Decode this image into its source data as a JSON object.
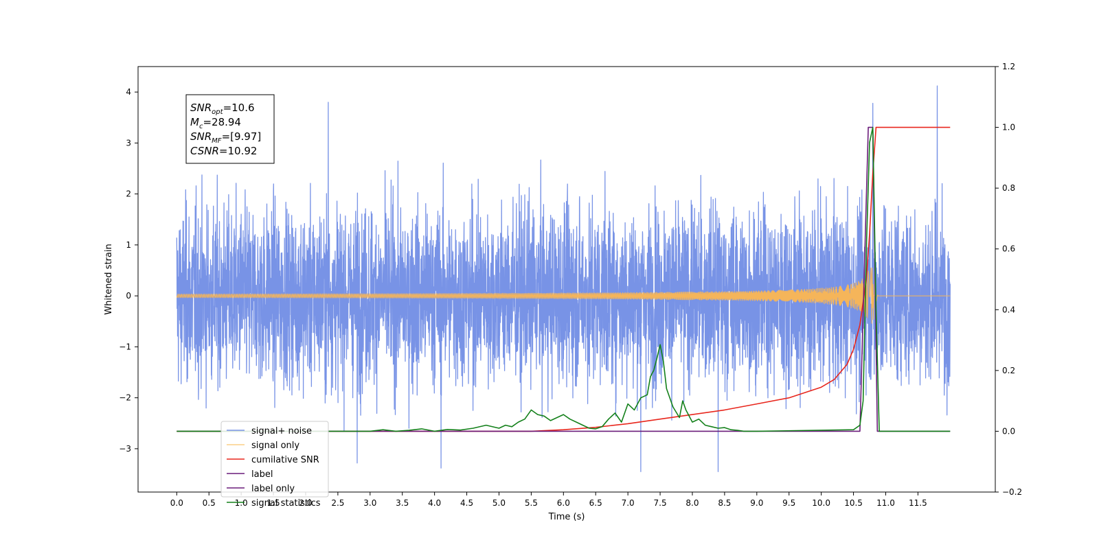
{
  "chart_data": {
    "type": "line",
    "xlabel": "Time (s)",
    "ylabel": "Whitened strain",
    "xlim": [
      -0.6,
      12.7
    ],
    "ylim": [
      -3.85,
      4.5
    ],
    "y2lim": [
      -0.2,
      1.2
    ],
    "grid": false,
    "legend_position": "lower-left",
    "xticks": [
      "0.0",
      "0.5",
      "1.0",
      "1.5",
      "2.0",
      "2.5",
      "3.0",
      "3.5",
      "4.0",
      "4.5",
      "5.0",
      "5.5",
      "6.0",
      "6.5",
      "7.0",
      "7.5",
      "8.0",
      "8.5",
      "9.0",
      "9.5",
      "10.0",
      "10.5",
      "11.0",
      "11.5"
    ],
    "yticks": [
      "4",
      "3",
      "2",
      "1",
      "0",
      "−1",
      "−2",
      "−3"
    ],
    "yticks_values": [
      4,
      3,
      2,
      1,
      0,
      -1,
      -2,
      -3
    ],
    "y2ticks": [
      "1.2",
      "1.0",
      "0.8",
      "0.6",
      "0.4",
      "0.2",
      "0.0",
      "−0.2"
    ],
    "y2ticks_values": [
      1.2,
      1.0,
      0.8,
      0.6,
      0.4,
      0.2,
      0.0,
      -0.2
    ],
    "annotation": {
      "lines": [
        {
          "base": "SNR",
          "sub": "opt",
          "value": "=10.6"
        },
        {
          "base": "M",
          "sub": "c",
          "value": "=28.94"
        },
        {
          "base": "SNR",
          "sub": "MF",
          "value": "=[9.97]"
        },
        {
          "base": "CSNR",
          "sub": "",
          "value": "=10.92"
        }
      ]
    },
    "series": [
      {
        "name": "signal+ noise",
        "color": "#7893e6",
        "axis": "left",
        "style": "noise",
        "x_range": [
          0.0,
          12.0
        ],
        "amplitude_sigma": 0.9,
        "peaks": [
          [
            2.35,
            3.8
          ],
          [
            10.8,
            3.78
          ],
          [
            11.8,
            4.12
          ],
          [
            4.1,
            -3.38
          ],
          [
            7.2,
            -3.45
          ],
          [
            8.4,
            -3.45
          ],
          [
            2.8,
            -3.28
          ]
        ]
      },
      {
        "name": "signal only",
        "color": "#f5b55a",
        "axis": "left",
        "style": "chirp",
        "x_range": [
          0.0,
          12.0
        ],
        "merger_time": 10.83,
        "peak_amplitude": 0.55
      },
      {
        "name": "cumilative SNR",
        "color": "#e8261c",
        "axis": "right",
        "style": "line",
        "x": [
          0.0,
          5.5,
          6.0,
          6.5,
          7.0,
          7.5,
          8.0,
          8.5,
          9.0,
          9.5,
          10.0,
          10.2,
          10.4,
          10.5,
          10.6,
          10.7,
          10.75,
          10.8,
          10.85,
          12.0
        ],
        "y": [
          0.0,
          0.0,
          0.005,
          0.013,
          0.025,
          0.04,
          0.055,
          0.07,
          0.09,
          0.11,
          0.145,
          0.17,
          0.22,
          0.27,
          0.35,
          0.5,
          0.65,
          0.85,
          1.0,
          1.0
        ]
      },
      {
        "name": "label",
        "color": "#6a1b7a",
        "axis": "right",
        "style": "line",
        "x": [
          0.0,
          10.6,
          10.73,
          10.8,
          10.87,
          12.0
        ],
        "y": [
          0.0,
          0.0,
          1.0,
          1.0,
          0.0,
          0.0
        ]
      },
      {
        "name": "label only",
        "color": "#6a1b7a",
        "axis": "right",
        "style": "legend-only"
      },
      {
        "name": "signal statistics",
        "color": "#13801a",
        "axis": "right",
        "style": "line",
        "x": [
          0.0,
          3.0,
          3.2,
          3.4,
          3.6,
          3.8,
          4.0,
          4.2,
          4.4,
          4.6,
          4.8,
          5.0,
          5.1,
          5.2,
          5.3,
          5.4,
          5.5,
          5.6,
          5.7,
          5.8,
          5.9,
          6.0,
          6.1,
          6.2,
          6.3,
          6.4,
          6.5,
          6.6,
          6.7,
          6.8,
          6.9,
          7.0,
          7.1,
          7.2,
          7.3,
          7.35,
          7.4,
          7.45,
          7.5,
          7.55,
          7.6,
          7.7,
          7.8,
          7.85,
          7.9,
          8.0,
          8.1,
          8.2,
          8.3,
          8.4,
          8.5,
          8.6,
          8.7,
          8.8,
          9.0,
          10.5,
          10.6,
          10.65,
          10.7,
          10.75,
          10.8,
          10.85,
          10.9,
          12.0
        ],
        "y": [
          0.0,
          0.0,
          0.005,
          0.0,
          0.003,
          0.008,
          0.0,
          0.006,
          0.004,
          0.01,
          0.02,
          0.01,
          0.02,
          0.015,
          0.03,
          0.04,
          0.07,
          0.055,
          0.05,
          0.035,
          0.045,
          0.055,
          0.04,
          0.03,
          0.02,
          0.01,
          0.008,
          0.015,
          0.04,
          0.06,
          0.03,
          0.09,
          0.07,
          0.11,
          0.12,
          0.18,
          0.2,
          0.24,
          0.285,
          0.23,
          0.14,
          0.08,
          0.045,
          0.1,
          0.07,
          0.03,
          0.04,
          0.02,
          0.015,
          0.01,
          0.012,
          0.005,
          0.003,
          0.0,
          0.0,
          0.005,
          0.02,
          0.1,
          0.6,
          0.95,
          1.0,
          0.4,
          0.0,
          0.0
        ]
      }
    ]
  }
}
